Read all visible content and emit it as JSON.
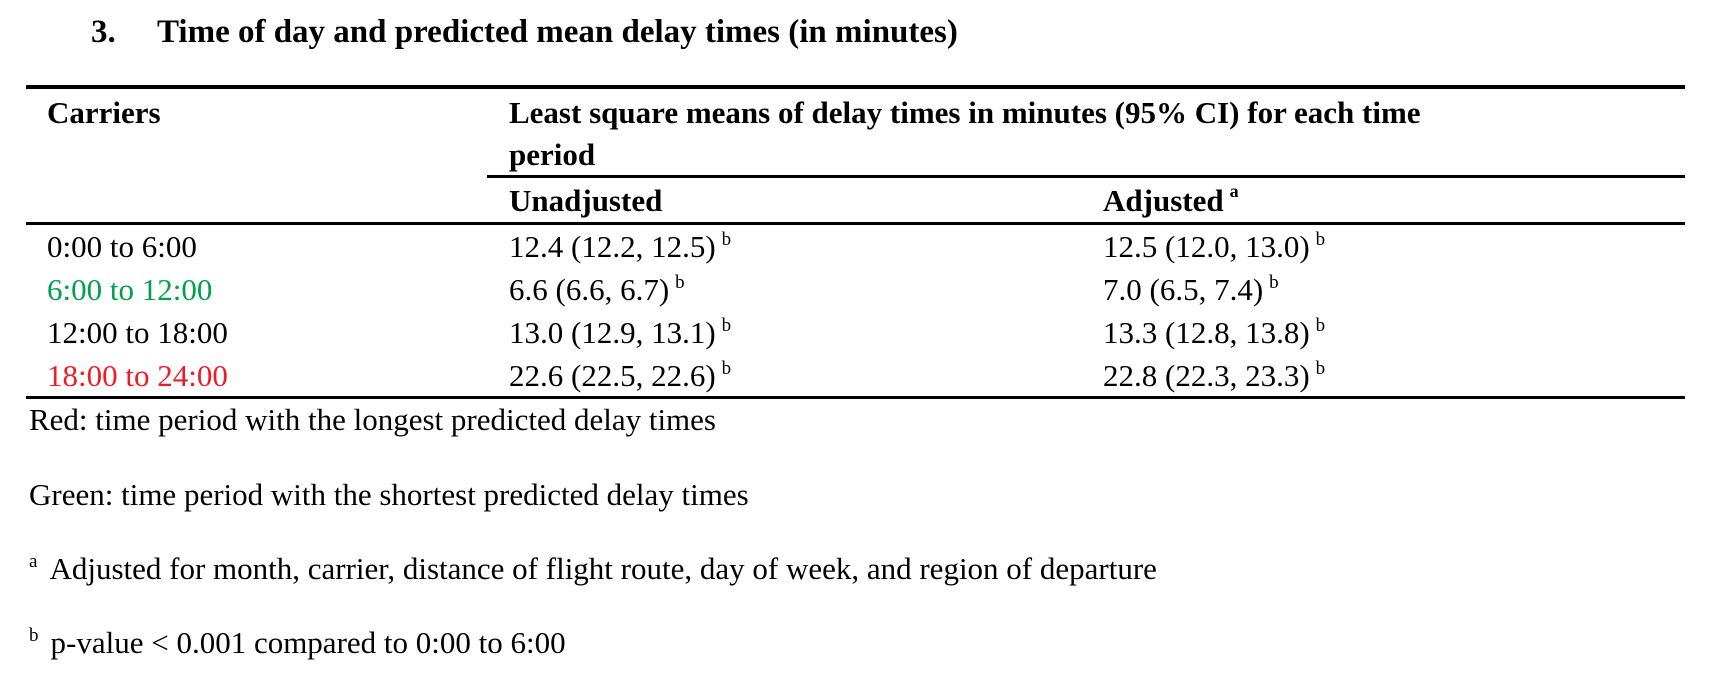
{
  "title": {
    "number": "3.",
    "text": "Time of day and predicted mean delay times (in minutes)"
  },
  "table": {
    "col_carriers": "Carriers",
    "col_group_line1": "Least square means of delay times in minutes (95% CI) for each time",
    "col_group_line2": "period",
    "col_unadjusted": "Unadjusted",
    "col_adjusted": "Adjusted",
    "col_adjusted_sup": "a",
    "rows": [
      {
        "period": "0:00 to 6:00",
        "unadjusted": "12.4 (12.2, 12.5)",
        "unadjusted_sup": "b",
        "adjusted": "12.5 (12.0, 13.0)",
        "adjusted_sup": "b",
        "color": "#000000"
      },
      {
        "period": "6:00 to 12:00",
        "unadjusted": "6.6 (6.6, 6.7)",
        "unadjusted_sup": "b",
        "adjusted": "7.0 (6.5, 7.4)",
        "adjusted_sup": "b",
        "color": "#00a14b"
      },
      {
        "period": "12:00 to 18:00",
        "unadjusted": "13.0 (12.9, 13.1)",
        "unadjusted_sup": "b",
        "adjusted": "13.3 (12.8, 13.8)",
        "adjusted_sup": "b",
        "color": "#000000"
      },
      {
        "period": "18:00 to 24:00",
        "unadjusted": "22.6 (22.5, 22.6)",
        "unadjusted_sup": "b",
        "adjusted": "22.8 (22.3, 23.3)",
        "adjusted_sup": "b",
        "color": "#ee1c24"
      }
    ]
  },
  "notes": {
    "red": "Red: time period with the longest predicted delay times",
    "green": "Green: time period with the shortest predicted delay times",
    "a_sup": "a",
    "a_text": "Adjusted for month, carrier, distance of flight route, day of week, and region of departure",
    "b_sup": "b",
    "b_text": "p-value < 0.001 compared to 0:00 to 6:00"
  }
}
